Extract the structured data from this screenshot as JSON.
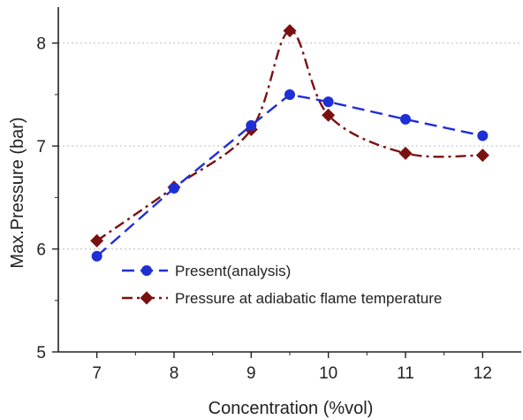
{
  "chart_data": {
    "type": "line",
    "xlabel": "Concentration (%vol)",
    "ylabel": "Max.Pressure (bar)",
    "xlim": [
      6.5,
      12.5
    ],
    "ylim": [
      5,
      8.35
    ],
    "x_ticks": [
      7,
      8,
      9,
      10,
      11,
      12
    ],
    "y_ticks": [
      5,
      6,
      7,
      8
    ],
    "grid": "horizontal-dotted",
    "legend_position": "bottom-right",
    "series": [
      {
        "name": "Present(analysis)",
        "marker": "circle",
        "line_style": "dashed",
        "color": "#1f2fd6",
        "x": [
          7,
          8,
          9,
          9.5,
          10,
          11,
          12
        ],
        "y": [
          5.93,
          6.59,
          7.2,
          7.5,
          7.43,
          7.26,
          7.1
        ]
      },
      {
        "name": "Pressure at adiabatic flame temperature",
        "marker": "diamond",
        "line_style": "dash-dot",
        "color": "#7b1010",
        "x": [
          7,
          8,
          9,
          9.5,
          10,
          11,
          12
        ],
        "y": [
          6.08,
          6.6,
          7.16,
          8.12,
          7.3,
          6.93,
          6.91
        ]
      }
    ]
  }
}
